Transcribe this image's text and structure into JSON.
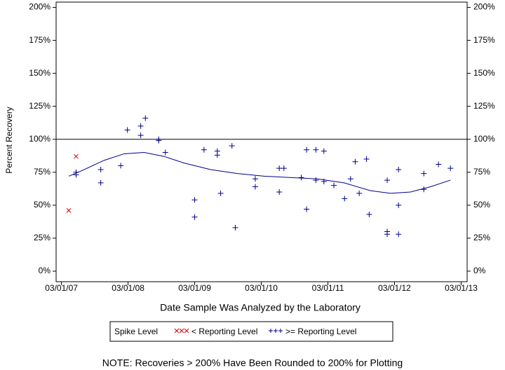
{
  "chart_data": {
    "type": "scatter",
    "x_label": "Date Sample Was Analyzed by the Laboratory",
    "y_label": "Percent Recovery",
    "note": "NOTE: Recoveries > 200% Have Been Rounded to 200% for Plotting",
    "legend_title": "Spike Level",
    "xlim": [
      2007.08,
      2013.25
    ],
    "xticks": [
      {
        "value": 2007.16,
        "label": "03/01/07"
      },
      {
        "value": 2008.16,
        "label": "03/01/08"
      },
      {
        "value": 2009.16,
        "label": "03/01/09"
      },
      {
        "value": 2010.16,
        "label": "03/01/10"
      },
      {
        "value": 2011.16,
        "label": "03/01/11"
      },
      {
        "value": 2012.16,
        "label": "03/01/12"
      },
      {
        "value": 2013.16,
        "label": "03/01/13"
      }
    ],
    "ylim": [
      -8,
      204
    ],
    "yticks": [
      {
        "value": 0,
        "label": "0%"
      },
      {
        "value": 25,
        "label": "25%"
      },
      {
        "value": 50,
        "label": "50%"
      },
      {
        "value": 75,
        "label": "75%"
      },
      {
        "value": 100,
        "label": "100%"
      },
      {
        "value": 125,
        "label": "125%"
      },
      {
        "value": 150,
        "label": "150%"
      },
      {
        "value": 175,
        "label": "175%"
      },
      {
        "value": 200,
        "label": "200%"
      }
    ],
    "reference_line": {
      "value": 100,
      "color": "#000000"
    },
    "series": [
      {
        "name": "< Reporting Level",
        "color": "#cc0000",
        "marker": "x",
        "x": [
          2007.27,
          2007.38
        ],
        "values": [
          46,
          87
        ]
      },
      {
        "name": ">= Reporting Level",
        "color": "#00008b",
        "marker": "+",
        "x": [
          2007.38,
          2007.38,
          2007.75,
          2007.75,
          2008.05,
          2008.15,
          2008.35,
          2008.35,
          2008.42,
          2008.62,
          2008.62,
          2008.72,
          2009.16,
          2009.16,
          2009.3,
          2009.5,
          2009.5,
          2009.55,
          2009.72,
          2009.77,
          2010.07,
          2010.07,
          2010.43,
          2010.43,
          2010.5,
          2010.76,
          2010.84,
          2010.84,
          2010.98,
          2010.98,
          2011.1,
          2011.1,
          2011.25,
          2011.41,
          2011.5,
          2011.57,
          2011.63,
          2011.74,
          2011.78,
          2012.05,
          2012.05,
          2012.05,
          2012.22,
          2012.22,
          2012.22,
          2012.6,
          2012.6,
          2012.82,
          2013.0
        ],
        "values": [
          75,
          73,
          77,
          67,
          80,
          107,
          110,
          103,
          116,
          100,
          99,
          90,
          54,
          41,
          92,
          91,
          88,
          59,
          95,
          33,
          70,
          64,
          78,
          60,
          78,
          71,
          92,
          47,
          92,
          69,
          91,
          68,
          65,
          55,
          70,
          83,
          59,
          85,
          43,
          69,
          30,
          28,
          77,
          50,
          28,
          74,
          62,
          81,
          78
        ]
      }
    ],
    "trend": {
      "color": "#00008b",
      "x": [
        2007.27,
        2007.5,
        2007.8,
        2008.1,
        2008.4,
        2008.7,
        2009.0,
        2009.4,
        2009.8,
        2010.2,
        2010.6,
        2011.0,
        2011.4,
        2011.8,
        2012.1,
        2012.4,
        2012.7,
        2013.0
      ],
      "values": [
        72,
        77,
        84,
        89,
        90,
        87,
        82,
        77,
        74,
        72,
        71,
        70,
        67,
        61,
        59,
        60,
        64,
        69
      ]
    }
  }
}
